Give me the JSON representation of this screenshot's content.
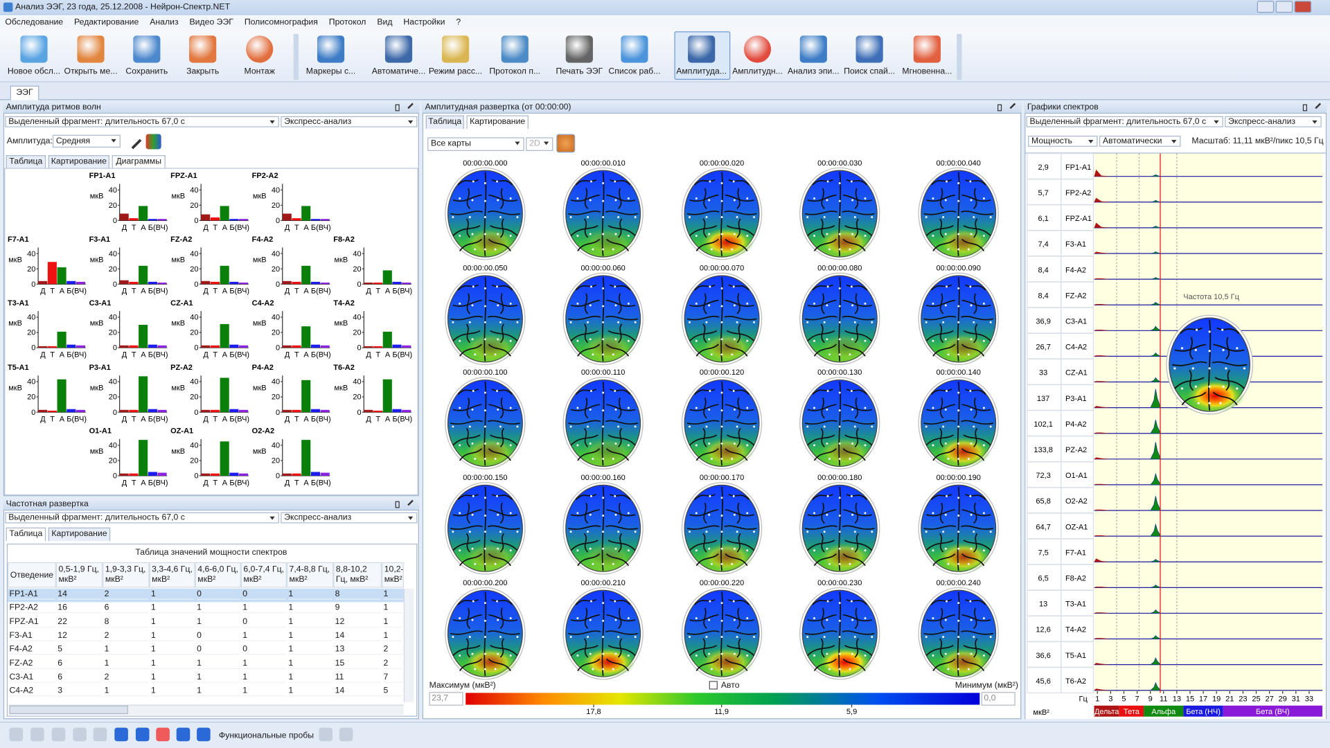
{
  "window": {
    "title": "Анализ ЭЭГ, 23 года, 25.12.2008 - Нейрон-Спектр.NET"
  },
  "menu": [
    "Обследование",
    "Редактирование",
    "Анализ",
    "Видео ЭЭГ",
    "Полисомнография",
    "Протокол",
    "Вид",
    "Настройки",
    "?"
  ],
  "toolbar": [
    "Новое обсл...",
    "Открыть ме...",
    "Сохранить",
    "Закрыть",
    "Монтаж",
    "Маркеры с...",
    "Автоматиче...",
    "Режим расс...",
    "Протокол п...",
    "Печать ЭЭГ",
    "Список раб...",
    "Амплитуда...",
    "Амплитудн...",
    "Анализ эпи...",
    "Поиск спай...",
    "Мгновенна..."
  ],
  "document_tab": "ЭЭГ",
  "amplitude_panel": {
    "title": "Амплитуда ритмов волн",
    "fragment": "Выделенный фрагмент: длительность 67,0 с",
    "mode": "Экспресс-анализ",
    "amplitude_label": "Амплитуда:",
    "amplitude_value": "Средняя",
    "tabs": [
      "Таблица",
      "Картирование",
      "Диаграммы"
    ],
    "charts": [
      {
        "type": "bar",
        "title": "FP1-A1",
        "y_label": "мкВ",
        "categories": [
          "Д",
          "Т",
          "А",
          "Б(ВЧ)",
          null
        ],
        "values": [
          9,
          3,
          19,
          2,
          2
        ],
        "colors": [
          "#a01818",
          "#ee1111",
          "#0a800a",
          "#1c1cf0",
          "#8a22e0"
        ],
        "ylim": [
          0,
          48
        ],
        "yticks": [
          0,
          20,
          40
        ]
      },
      {
        "type": "bar",
        "title": "FPZ-A1",
        "y_label": "мкВ",
        "categories": [
          "Д",
          "Т",
          "А",
          "Б(ВЧ)",
          null
        ],
        "values": [
          8,
          4,
          19,
          2,
          2
        ],
        "colors": [
          "#a01818",
          "#ee1111",
          "#0a800a",
          "#1c1cf0",
          "#8a22e0"
        ],
        "ylim": [
          0,
          48
        ],
        "yticks": [
          0,
          20,
          40
        ]
      },
      {
        "type": "bar",
        "title": "FP2-A2",
        "y_label": "мкВ",
        "categories": [
          "Д",
          "Т",
          "А",
          "Б(ВЧ)",
          null
        ],
        "values": [
          9,
          3,
          19,
          2,
          2
        ],
        "colors": [
          "#a01818",
          "#ee1111",
          "#0a800a",
          "#1c1cf0",
          "#8a22e0"
        ],
        "ylim": [
          0,
          48
        ],
        "yticks": [
          0,
          20,
          40
        ]
      },
      {
        "type": "bar",
        "title": "F7-A1",
        "y_label": "мкВ",
        "categories": [
          "Д",
          "Т",
          "А",
          "Б(ВЧ)",
          null
        ],
        "values": [
          4,
          29,
          22,
          4,
          3
        ],
        "colors": [
          "#a01818",
          "#ee1111",
          "#0a800a",
          "#1c1cf0",
          "#8a22e0"
        ],
        "ylim": [
          0,
          48
        ],
        "yticks": [
          0,
          20,
          40
        ]
      },
      {
        "type": "bar",
        "title": "F3-A1",
        "y_label": "мкВ",
        "categories": [
          "Д",
          "Т",
          "А",
          "Б(ВЧ)",
          null
        ],
        "values": [
          5,
          3,
          24,
          3,
          2
        ],
        "colors": [
          "#a01818",
          "#ee1111",
          "#0a800a",
          "#1c1cf0",
          "#8a22e0"
        ],
        "ylim": [
          0,
          48
        ],
        "yticks": [
          0,
          20,
          40
        ]
      },
      {
        "type": "bar",
        "title": "FZ-A2",
        "y_label": "мкВ",
        "categories": [
          "Д",
          "Т",
          "А",
          "Б(ВЧ)",
          null
        ],
        "values": [
          4,
          3,
          24,
          3,
          2
        ],
        "colors": [
          "#a01818",
          "#ee1111",
          "#0a800a",
          "#1c1cf0",
          "#8a22e0"
        ],
        "ylim": [
          0,
          48
        ],
        "yticks": [
          0,
          20,
          40
        ]
      },
      {
        "type": "bar",
        "title": "F4-A2",
        "y_label": "мкВ",
        "categories": [
          "Д",
          "Т",
          "А",
          "Б(ВЧ)",
          null
        ],
        "values": [
          4,
          3,
          24,
          3,
          2
        ],
        "colors": [
          "#a01818",
          "#ee1111",
          "#0a800a",
          "#1c1cf0",
          "#8a22e0"
        ],
        "ylim": [
          0,
          48
        ],
        "yticks": [
          0,
          20,
          40
        ]
      },
      {
        "type": "bar",
        "title": "F8-A2",
        "y_label": "мкВ",
        "categories": [
          "Д",
          "Т",
          "А",
          "Б(ВЧ)",
          null
        ],
        "values": [
          2,
          2,
          18,
          3,
          2
        ],
        "colors": [
          "#a01818",
          "#ee1111",
          "#0a800a",
          "#1c1cf0",
          "#8a22e0"
        ],
        "ylim": [
          0,
          48
        ],
        "yticks": [
          0,
          20,
          40
        ]
      },
      {
        "type": "bar",
        "title": "T3-A1",
        "y_label": "мкВ",
        "categories": [
          "Д",
          "Т",
          "А",
          "Б(ВЧ)",
          null
        ],
        "values": [
          2,
          2,
          21,
          4,
          3
        ],
        "colors": [
          "#a01818",
          "#ee1111",
          "#0a800a",
          "#1c1cf0",
          "#8a22e0"
        ],
        "ylim": [
          0,
          48
        ],
        "yticks": [
          0,
          20,
          40
        ]
      },
      {
        "type": "bar",
        "title": "C3-A1",
        "y_label": "мкВ",
        "categories": [
          "Д",
          "Т",
          "А",
          "Б(ВЧ)",
          null
        ],
        "values": [
          3,
          3,
          30,
          4,
          3
        ],
        "colors": [
          "#a01818",
          "#ee1111",
          "#0a800a",
          "#1c1cf0",
          "#8a22e0"
        ],
        "ylim": [
          0,
          48
        ],
        "yticks": [
          0,
          20,
          40
        ]
      },
      {
        "type": "bar",
        "title": "CZ-A1",
        "y_label": "мкВ",
        "categories": [
          "Д",
          "Т",
          "А",
          "Б(ВЧ)",
          null
        ],
        "values": [
          3,
          3,
          31,
          4,
          3
        ],
        "colors": [
          "#a01818",
          "#ee1111",
          "#0a800a",
          "#1c1cf0",
          "#8a22e0"
        ],
        "ylim": [
          0,
          48
        ],
        "yticks": [
          0,
          20,
          40
        ]
      },
      {
        "type": "bar",
        "title": "C4-A2",
        "y_label": "мкВ",
        "categories": [
          "Д",
          "Т",
          "А",
          "Б(ВЧ)",
          null
        ],
        "values": [
          3,
          3,
          28,
          4,
          3
        ],
        "colors": [
          "#a01818",
          "#ee1111",
          "#0a800a",
          "#1c1cf0",
          "#8a22e0"
        ],
        "ylim": [
          0,
          48
        ],
        "yticks": [
          0,
          20,
          40
        ]
      },
      {
        "type": "bar",
        "title": "T4-A2",
        "y_label": "мкВ",
        "categories": [
          "Д",
          "Т",
          "А",
          "Б(ВЧ)",
          null
        ],
        "values": [
          2,
          2,
          21,
          4,
          3
        ],
        "colors": [
          "#a01818",
          "#ee1111",
          "#0a800a",
          "#1c1cf0",
          "#8a22e0"
        ],
        "ylim": [
          0,
          48
        ],
        "yticks": [
          0,
          20,
          40
        ]
      },
      {
        "type": "bar",
        "title": "T5-A1",
        "y_label": "мкВ",
        "categories": [
          "Д",
          "Т",
          "А",
          "Б(ВЧ)",
          null
        ],
        "values": [
          3,
          2,
          43,
          4,
          3
        ],
        "colors": [
          "#a01818",
          "#ee1111",
          "#0a800a",
          "#1c1cf0",
          "#8a22e0"
        ],
        "ylim": [
          0,
          48
        ],
        "yticks": [
          0,
          20,
          40
        ]
      },
      {
        "type": "bar",
        "title": "P3-A1",
        "y_label": "мкВ",
        "categories": [
          "Д",
          "Т",
          "А",
          "Б(ВЧ)",
          null
        ],
        "values": [
          3,
          3,
          47,
          4,
          3
        ],
        "colors": [
          "#a01818",
          "#ee1111",
          "#0a800a",
          "#1c1cf0",
          "#8a22e0"
        ],
        "ylim": [
          0,
          48
        ],
        "yticks": [
          0,
          20,
          40
        ]
      },
      {
        "type": "bar",
        "title": "PZ-A2",
        "y_label": "мкВ",
        "categories": [
          "Д",
          "Т",
          "А",
          "Б(ВЧ)",
          null
        ],
        "values": [
          3,
          3,
          45,
          4,
          3
        ],
        "colors": [
          "#a01818",
          "#ee1111",
          "#0a800a",
          "#1c1cf0",
          "#8a22e0"
        ],
        "ylim": [
          0,
          48
        ],
        "yticks": [
          0,
          20,
          40
        ]
      },
      {
        "type": "bar",
        "title": "P4-A2",
        "y_label": "мкВ",
        "categories": [
          "Д",
          "Т",
          "А",
          "Б(ВЧ)",
          null
        ],
        "values": [
          3,
          3,
          42,
          4,
          3
        ],
        "colors": [
          "#a01818",
          "#ee1111",
          "#0a800a",
          "#1c1cf0",
          "#8a22e0"
        ],
        "ylim": [
          0,
          48
        ],
        "yticks": [
          0,
          20,
          40
        ]
      },
      {
        "type": "bar",
        "title": "T6-A2",
        "y_label": "мкВ",
        "categories": [
          "Д",
          "Т",
          "А",
          "Б(ВЧ)",
          null
        ],
        "values": [
          3,
          2,
          43,
          4,
          3
        ],
        "colors": [
          "#a01818",
          "#ee1111",
          "#0a800a",
          "#1c1cf0",
          "#8a22e0"
        ],
        "ylim": [
          0,
          48
        ],
        "yticks": [
          0,
          20,
          40
        ]
      },
      {
        "type": "bar",
        "title": "O1-A1",
        "y_label": "мкВ",
        "categories": [
          "Д",
          "Т",
          "А",
          "Б(ВЧ)",
          null
        ],
        "values": [
          3,
          3,
          47,
          5,
          4
        ],
        "colors": [
          "#a01818",
          "#ee1111",
          "#0a800a",
          "#1c1cf0",
          "#8a22e0"
        ],
        "ylim": [
          0,
          48
        ],
        "yticks": [
          0,
          20,
          40
        ]
      },
      {
        "type": "bar",
        "title": "OZ-A1",
        "y_label": "мкВ",
        "categories": [
          "Д",
          "Т",
          "А",
          "Б(ВЧ)",
          null
        ],
        "values": [
          3,
          3,
          45,
          4,
          3
        ],
        "colors": [
          "#a01818",
          "#ee1111",
          "#0a800a",
          "#1c1cf0",
          "#8a22e0"
        ],
        "ylim": [
          0,
          48
        ],
        "yticks": [
          0,
          20,
          40
        ]
      },
      {
        "type": "bar",
        "title": "O2-A2",
        "y_label": "мкВ",
        "categories": [
          "Д",
          "Т",
          "А",
          "Б(ВЧ)",
          null
        ],
        "values": [
          3,
          3,
          47,
          5,
          4
        ],
        "colors": [
          "#a01818",
          "#ee1111",
          "#0a800a",
          "#1c1cf0",
          "#8a22e0"
        ],
        "ylim": [
          0,
          48
        ],
        "yticks": [
          0,
          20,
          40
        ]
      }
    ]
  },
  "frequency_panel": {
    "title": "Частотная развертка",
    "fragment": "Выделенный фрагмент: длительность 67,0 с",
    "mode": "Экспресс-анализ",
    "tabs": [
      "Таблица",
      "Картирование"
    ],
    "table": {
      "title": "Таблица значений мощности спектров",
      "columns": [
        "Отведение",
        "0,5-1,9 Гц, мкВ²",
        "1,9-3,3 Гц, мкВ²",
        "3,3-4,6 Гц, мкВ²",
        "4,6-6,0 Гц, мкВ²",
        "6,0-7,4 Гц, мкВ²",
        "7,4-8,8 Гц, мкВ²",
        "8,8-10,2 Гц, мкВ²",
        "10,2- мкВ²"
      ],
      "rows": [
        [
          "FP1-A1",
          14,
          2,
          1,
          0,
          0,
          1,
          8,
          1
        ],
        [
          "FP2-A2",
          16,
          6,
          1,
          1,
          1,
          1,
          9,
          1
        ],
        [
          "FPZ-A1",
          22,
          8,
          1,
          1,
          0,
          1,
          12,
          1
        ],
        [
          "F3-A1",
          12,
          2,
          1,
          0,
          1,
          1,
          14,
          1
        ],
        [
          "F4-A2",
          5,
          1,
          1,
          0,
          0,
          1,
          13,
          2
        ],
        [
          "FZ-A2",
          6,
          1,
          1,
          1,
          1,
          1,
          15,
          2
        ],
        [
          "C3-A1",
          6,
          2,
          1,
          1,
          1,
          1,
          11,
          7
        ],
        [
          "C4-A2",
          3,
          1,
          1,
          1,
          1,
          1,
          14,
          5
        ]
      ]
    }
  },
  "mapping_panel": {
    "title": "Амплитудная развертка (от 00:00:00)",
    "tabs": [
      "Таблица",
      "Картирование"
    ],
    "maps_filter": "Все карты",
    "view": "2D",
    "timestamps": [
      "00:00:00.000",
      "00:00:00.010",
      "00:00:00.020",
      "00:00:00.030",
      "00:00:00.040",
      "00:00:00.050",
      "00:00:00.060",
      "00:00:00.070",
      "00:00:00.080",
      "00:00:00.090",
      "00:00:00.100",
      "00:00:00.110",
      "00:00:00.120",
      "00:00:00.130",
      "00:00:00.140",
      "00:00:00.150",
      "00:00:00.160",
      "00:00:00.170",
      "00:00:00.180",
      "00:00:00.190",
      "00:00:00.200",
      "00:00:00.210",
      "00:00:00.220",
      "00:00:00.230",
      "00:00:00.240"
    ],
    "max_label": "Максимум (мкВ²)",
    "auto": "Авто",
    "min_label": "Минимум (мкВ²)",
    "colorbar": {
      "lim": [
        {
          "value": 23.7,
          "label": "23,7"
        },
        {
          "value": 0,
          "label": "0,0"
        }
      ],
      "ticks": [
        {
          "value": 17.8,
          "label": "17,8"
        },
        {
          "value": 11.9,
          "label": "11,9"
        },
        {
          "value": 5.9,
          "label": "5,9"
        }
      ]
    }
  },
  "spectrum_panel": {
    "title": "Графики спектров",
    "fragment": "Выделенный фрагмент: длительность 67,0 с",
    "mode": "Экспресс-анализ",
    "measure": "Мощность",
    "scale_mode": "Автоматически",
    "scale": "Масштаб: 11,11 мкВ²/пикс 10,5 Гц",
    "channels": [
      {
        "value": "2,9",
        "name": "FP1-A1"
      },
      {
        "value": "5,7",
        "name": "FP2-A2"
      },
      {
        "value": "6,1",
        "name": "FPZ-A1"
      },
      {
        "value": "7,4",
        "name": "F3-A1"
      },
      {
        "value": "8,4",
        "name": "F4-A2"
      },
      {
        "value": "8,4",
        "name": "FZ-A2"
      },
      {
        "value": "36,9",
        "name": "C3-A1"
      },
      {
        "value": "26,7",
        "name": "C4-A2"
      },
      {
        "value": "33",
        "name": "CZ-A1"
      },
      {
        "value": "137",
        "name": "P3-A1"
      },
      {
        "value": "102,1",
        "name": "P4-A2"
      },
      {
        "value": "133,8",
        "name": "PZ-A2"
      },
      {
        "value": "72,3",
        "name": "O1-A1"
      },
      {
        "value": "65,8",
        "name": "O2-A2"
      },
      {
        "value": "64,7",
        "name": "OZ-A1"
      },
      {
        "value": "7,5",
        "name": "F7-A1"
      },
      {
        "value": "6,5",
        "name": "F8-A2"
      },
      {
        "value": "13",
        "name": "T3-A1"
      },
      {
        "value": "12,6",
        "name": "T4-A2"
      },
      {
        "value": "36,6",
        "name": "T5-A1"
      },
      {
        "value": "45,6",
        "name": "T6-A2"
      }
    ],
    "frequency_note": "Частота 10,5 Гц",
    "cursor_hz": 10.5,
    "x_unit": "Гц",
    "xlim": [
      0,
      35
    ],
    "xticks": [
      1,
      3,
      5,
      7,
      9,
      11,
      13,
      15,
      17,
      19,
      21,
      23,
      25,
      27,
      29,
      31,
      33
    ],
    "y_unit": "мкВ²",
    "bands": [
      {
        "name": "Дельта",
        "color": "#b01515"
      },
      {
        "name": "Тета",
        "color": "#e81010"
      },
      {
        "name": "Альфа",
        "color": "#108a10"
      },
      {
        "name": "Бета (НЧ)",
        "color": "#1a1ae0"
      },
      {
        "name": "Бета (ВЧ)",
        "color": "#8a1ad8"
      }
    ]
  },
  "status_bar": {
    "functional_tests": "Функциональные пробы"
  }
}
